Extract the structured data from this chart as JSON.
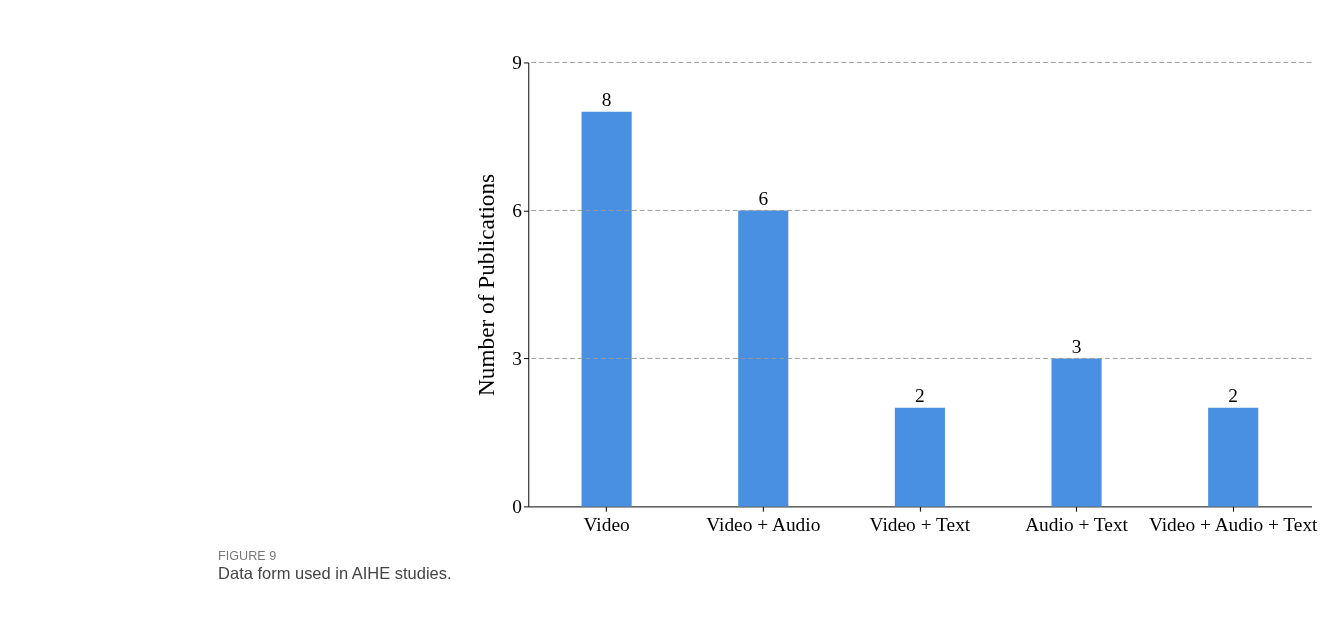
{
  "chart_data": {
    "type": "bar",
    "categories": [
      "Video",
      "Video + Audio",
      "Video + Text",
      "Audio + Text",
      "Video + Audio + Text"
    ],
    "values": [
      8,
      6,
      2,
      3,
      2
    ],
    "color": "#4a90e2",
    "ylabel": "Number of Publications",
    "ylim": [
      0,
      9
    ],
    "yticks": [
      0,
      3,
      6,
      9
    ],
    "grid": "y",
    "data_labels": true,
    "annotations": [
      "FIGURE 9",
      "Data form used in AIHE studies."
    ]
  }
}
